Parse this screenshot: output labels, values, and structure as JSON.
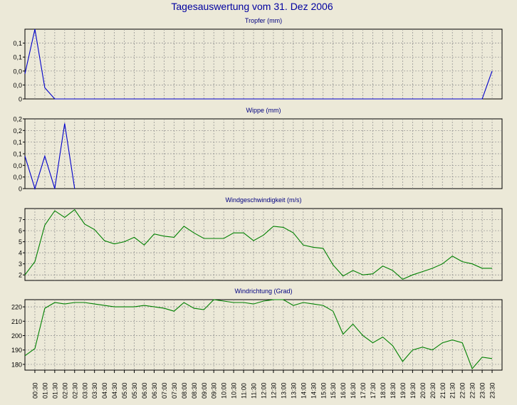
{
  "title": "Tagesauswertung vom 31. Dez 2006",
  "colors": {
    "background": "#ece9d8",
    "title": "#0000a0",
    "panel_title": "#000080",
    "rain_line": "#0000cc",
    "wind_line": "#008000",
    "grid": "#8c8c8c",
    "plot_bg": "#ece9d8"
  },
  "x_tick_labels": [
    "00:30",
    "01:00",
    "01:30",
    "02:00",
    "02:30",
    "03:00",
    "03:30",
    "04:00",
    "04:30",
    "05:00",
    "05:30",
    "06:00",
    "06:30",
    "07:00",
    "07:30",
    "08:00",
    "08:30",
    "09:00",
    "09:30",
    "10:00",
    "10:30",
    "11:00",
    "11:30",
    "12:00",
    "12:30",
    "13:00",
    "13:30",
    "14:00",
    "14:30",
    "15:00",
    "15:30",
    "16:00",
    "16:30",
    "17:00",
    "17:30",
    "18:00",
    "18:30",
    "19:00",
    "19:30",
    "20:00",
    "20:30",
    "21:00",
    "21:30",
    "22:00",
    "22:30",
    "23:00",
    "23:30"
  ],
  "chart_data": [
    {
      "type": "line",
      "title": "Tropfer (mm)",
      "ytick_labels": [
        "0",
        "0,0",
        "0,0",
        "0,1",
        "0,1"
      ],
      "ylim": [
        0,
        0.25
      ],
      "ytick_values": [
        0,
        0.05,
        0.1,
        0.15,
        0.2
      ],
      "x_hours": [
        0.0,
        0.5,
        1.0,
        1.5,
        23.0,
        23.5
      ],
      "values": [
        0.09,
        0.25,
        0.04,
        0.0,
        0.0,
        0.1
      ],
      "color": "#0000cc"
    },
    {
      "type": "line",
      "title": "Wippe (mm)",
      "ytick_labels": [
        "0",
        "0,0",
        "0,0",
        "0,1",
        "0,1",
        "0,2",
        "0,2"
      ],
      "ylim": [
        0,
        0.3
      ],
      "ytick_values": [
        0,
        0.05,
        0.1,
        0.15,
        0.2,
        0.25,
        0.3
      ],
      "x_hours": [
        0.0,
        0.5,
        1.0,
        1.5,
        2.0,
        2.5
      ],
      "values": [
        0.14,
        0.0,
        0.14,
        0.0,
        0.28,
        0.0
      ],
      "color": "#0000cc"
    },
    {
      "type": "line",
      "title": "Windgeschwindigkeit (m/s)",
      "ytick_labels": [
        "2",
        "3",
        "4",
        "5",
        "6",
        "7"
      ],
      "ylim": [
        1.5,
        8.0
      ],
      "ytick_values": [
        2,
        3,
        4,
        5,
        6,
        7
      ],
      "x_hours": [
        0.0,
        0.5,
        1.0,
        1.5,
        2.0,
        2.5,
        3.0,
        3.5,
        4.0,
        4.5,
        5.0,
        5.5,
        6.0,
        6.5,
        7.0,
        7.5,
        8.0,
        8.5,
        9.0,
        9.5,
        10.0,
        10.5,
        11.0,
        11.5,
        12.0,
        12.5,
        13.0,
        13.5,
        14.0,
        14.5,
        15.0,
        15.5,
        16.0,
        16.5,
        17.0,
        17.5,
        18.0,
        18.5,
        19.0,
        19.5,
        20.0,
        20.5,
        21.0,
        21.5,
        22.0,
        22.5,
        23.0,
        23.5
      ],
      "values": [
        2.0,
        3.2,
        6.5,
        7.8,
        7.2,
        7.9,
        6.6,
        6.1,
        5.1,
        4.8,
        5.0,
        5.4,
        4.7,
        5.7,
        5.5,
        5.4,
        6.4,
        5.8,
        5.3,
        5.3,
        5.3,
        5.8,
        5.8,
        5.1,
        5.6,
        6.4,
        6.3,
        5.8,
        4.7,
        4.5,
        4.4,
        2.9,
        1.9,
        2.4,
        2.0,
        2.1,
        2.8,
        2.4,
        1.6,
        2.0,
        2.3,
        2.6,
        3.0,
        3.7,
        3.2,
        3.0,
        2.6,
        2.6
      ],
      "color": "#008000"
    },
    {
      "type": "line",
      "title": "Windrichtung (Grad)",
      "ytick_labels": [
        "180",
        "190",
        "200",
        "210",
        "220"
      ],
      "ylim": [
        176,
        225
      ],
      "ytick_values": [
        180,
        190,
        200,
        210,
        220
      ],
      "x_hours": [
        0.0,
        0.5,
        1.0,
        1.5,
        2.0,
        2.5,
        3.0,
        3.5,
        4.0,
        4.5,
        5.0,
        5.5,
        6.0,
        6.5,
        7.0,
        7.5,
        8.0,
        8.5,
        9.0,
        9.5,
        10.0,
        10.5,
        11.0,
        11.5,
        12.0,
        12.5,
        13.0,
        13.5,
        14.0,
        14.5,
        15.0,
        15.5,
        16.0,
        16.5,
        17.0,
        17.5,
        18.0,
        18.5,
        19.0,
        19.5,
        20.0,
        20.5,
        21.0,
        21.5,
        22.0,
        22.5,
        23.0,
        23.5
      ],
      "values": [
        186,
        191,
        219,
        223,
        222,
        223,
        223,
        222,
        221,
        220,
        220,
        220,
        221,
        220,
        219,
        217,
        223,
        219,
        218,
        225,
        224,
        223,
        223,
        222,
        224,
        225,
        225,
        221,
        223,
        222,
        221,
        217,
        201,
        208,
        200,
        195,
        199,
        193,
        182,
        190,
        192,
        190,
        195,
        197,
        195,
        177,
        185,
        184
      ],
      "color": "#008000"
    }
  ]
}
